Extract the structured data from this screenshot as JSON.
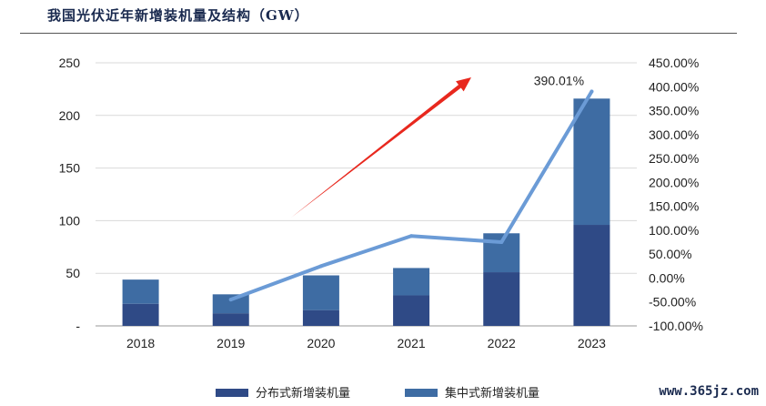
{
  "title": "我国光伏近年新增装机量及结构（GW）",
  "watermark": "www.365jz.com",
  "colors": {
    "distributed": "#2f4a86",
    "centralized": "#3e6ca3",
    "line": "#6b9bd6",
    "arrow": "#e8281e"
  },
  "chart_data": {
    "type": "bar",
    "categories": [
      "2018",
      "2019",
      "2020",
      "2021",
      "2022",
      "2023"
    ],
    "series": [
      {
        "name": "分布式新增装机量",
        "values": [
          21,
          12,
          15,
          29,
          51,
          96
        ]
      },
      {
        "name": "集中式新增装机量",
        "values": [
          23,
          18,
          33,
          26,
          37,
          120
        ]
      }
    ],
    "line_series": {
      "x": [
        "2019",
        "2020",
        "2021",
        "2022",
        "2023"
      ],
      "values": [
        -45,
        25,
        88,
        75,
        390.01
      ]
    },
    "annotation": "390.01%",
    "y_left": {
      "ticks": [
        "-",
        "50",
        "100",
        "150",
        "200",
        "250"
      ],
      "ylim": [
        0,
        250
      ]
    },
    "y_right": {
      "ticks": [
        "-100.00%",
        "-50.00%",
        "0.00%",
        "50.00%",
        "100.00%",
        "150.00%",
        "200.00%",
        "250.00%",
        "300.00%",
        "350.00%",
        "400.00%",
        "450.00%"
      ],
      "ylim": [
        -100,
        450
      ]
    },
    "grid": true,
    "legend_position": "bottom"
  }
}
